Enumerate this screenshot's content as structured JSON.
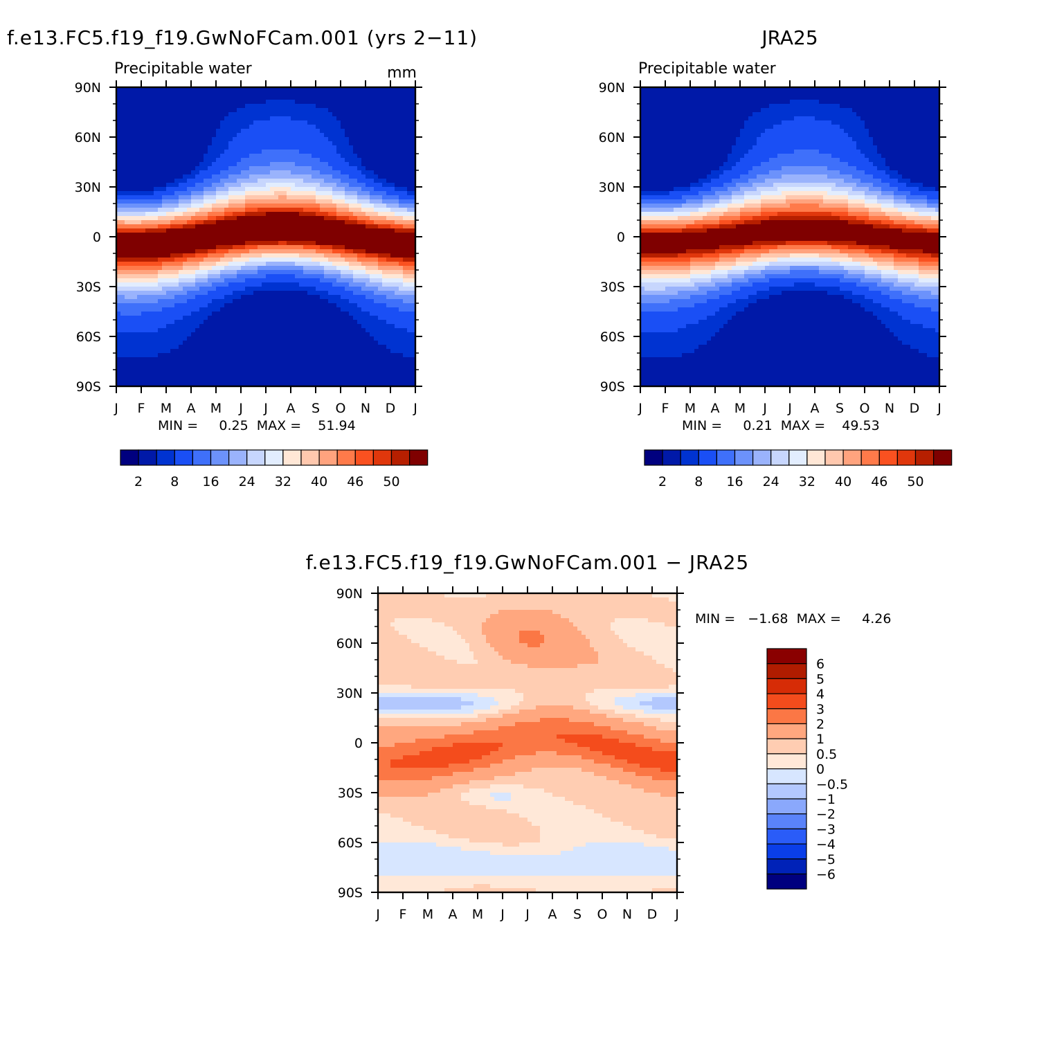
{
  "months": [
    "J",
    "F",
    "M",
    "A",
    "M",
    "J",
    "J",
    "A",
    "S",
    "O",
    "N",
    "D",
    "J"
  ],
  "lat_labels": [
    "90N",
    "60N",
    "30N",
    "0",
    "30S",
    "60S",
    "90S"
  ],
  "seq_palette": [
    "#00007f",
    "#0019a8",
    "#0033d1",
    "#1a4ff5",
    "#3f70fa",
    "#6c92fb",
    "#9ab3fc",
    "#c7d6fd",
    "#e2edfe",
    "#ffe7d6",
    "#ffc8ae",
    "#ffa37e",
    "#ff7a4a",
    "#fa5120",
    "#e0370c",
    "#b61f00",
    "#7f0000"
  ],
  "diff_palette": [
    "#00007f",
    "#0022b8",
    "#0a3ee8",
    "#2a5cf8",
    "#5a83fa",
    "#8aa8fc",
    "#b3c8fe",
    "#d7e6ff",
    "#ffe8d8",
    "#ffcdb2",
    "#ffa77f",
    "#fb7745",
    "#f44c1c",
    "#d62c06",
    "#b01c00",
    "#8a0000"
  ],
  "chart_data": [
    {
      "type": "heatmap",
      "id": "model",
      "title": "f.e13.FC5.f19_f19.GwNoFCam.001 (yrs 2−11)",
      "subtitle": "Precipitable water",
      "units": "mm",
      "x_categories": [
        "J",
        "F",
        "M",
        "A",
        "M",
        "J",
        "J",
        "A",
        "S",
        "O",
        "N",
        "D",
        "J"
      ],
      "y_range": [
        -90,
        90
      ],
      "y_tick_labels": [
        "90N",
        "60N",
        "30N",
        "0",
        "30S",
        "60S",
        "90S"
      ],
      "stats_label": "MIN =     0.25  MAX =    51.94",
      "min": 0.25,
      "max": 51.94,
      "colorbar_levels": [
        0,
        2,
        4,
        8,
        12,
        16,
        20,
        24,
        28,
        32,
        36,
        40,
        44,
        46,
        48,
        50
      ],
      "colorbar_labels": [
        "2",
        "8",
        "16",
        "24",
        "32",
        "40",
        "46",
        "50"
      ],
      "eq_shift": 3.5,
      "peak": 52,
      "pole_floor": 0.5
    },
    {
      "type": "heatmap",
      "id": "obs",
      "title": "JRA25",
      "subtitle": "Precipitable water",
      "x_categories": [
        "J",
        "F",
        "M",
        "A",
        "M",
        "J",
        "J",
        "A",
        "S",
        "O",
        "N",
        "D",
        "J"
      ],
      "y_range": [
        -90,
        90
      ],
      "y_tick_labels": [
        "90N",
        "60N",
        "30N",
        "0",
        "30S",
        "60S",
        "90S"
      ],
      "stats_label": "MIN =     0.21  MAX =    49.53",
      "min": 0.21,
      "max": 49.53,
      "colorbar_levels": [
        0,
        2,
        4,
        8,
        12,
        16,
        20,
        24,
        28,
        32,
        36,
        40,
        44,
        46,
        48,
        50
      ],
      "colorbar_labels": [
        "2",
        "8",
        "16",
        "24",
        "32",
        "40",
        "46",
        "50"
      ],
      "eq_shift": 2.5,
      "peak": 49.5,
      "pole_floor": 0.3
    },
    {
      "type": "heatmap",
      "id": "diff",
      "title": "f.e13.FC5.f19_f19.GwNoFCam.001 − JRA25",
      "x_categories": [
        "J",
        "F",
        "M",
        "A",
        "M",
        "J",
        "J",
        "A",
        "S",
        "O",
        "N",
        "D",
        "J"
      ],
      "y_range": [
        -90,
        90
      ],
      "y_tick_labels": [
        "90N",
        "60N",
        "30N",
        "0",
        "30S",
        "60S",
        "90S"
      ],
      "stats_label": "MIN =   −1.68  MAX =     4.26",
      "min": -1.68,
      "max": 4.26,
      "colorbar_levels": [
        -6,
        -5,
        -4,
        -3,
        -2,
        -1,
        -0.5,
        0,
        0.5,
        1,
        2,
        3,
        4,
        5,
        6
      ],
      "colorbar_labels": [
        "6",
        "5",
        "4",
        "3",
        "2",
        "1",
        "0.5",
        "0",
        "−0.5",
        "−1",
        "−2",
        "−3",
        "−4",
        "−5",
        "−6"
      ]
    }
  ]
}
